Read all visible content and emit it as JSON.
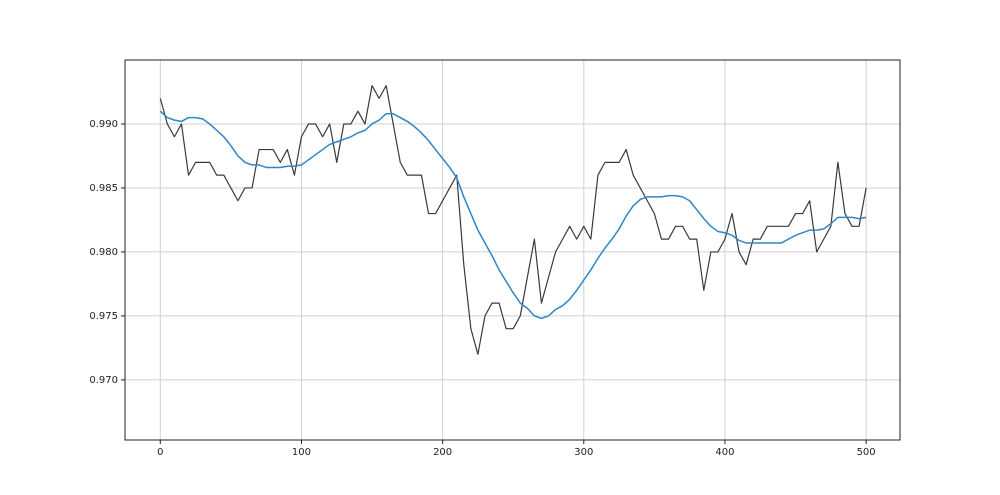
{
  "chart_data": {
    "type": "line",
    "x": [
      0,
      5,
      10,
      15,
      20,
      25,
      30,
      35,
      40,
      45,
      50,
      55,
      60,
      65,
      70,
      75,
      80,
      85,
      90,
      95,
      100,
      105,
      110,
      115,
      120,
      125,
      130,
      135,
      140,
      145,
      150,
      155,
      160,
      165,
      170,
      175,
      180,
      185,
      190,
      195,
      200,
      205,
      210,
      215,
      220,
      225,
      230,
      235,
      240,
      245,
      250,
      255,
      260,
      265,
      270,
      275,
      280,
      285,
      290,
      295,
      300,
      305,
      310,
      315,
      320,
      325,
      330,
      335,
      340,
      345,
      350,
      355,
      360,
      365,
      370,
      375,
      380,
      385,
      390,
      395,
      400,
      405,
      410,
      415,
      420,
      425,
      430,
      435,
      440,
      445,
      450,
      455,
      460,
      465,
      470,
      475,
      480,
      485,
      490,
      495,
      500
    ],
    "series": [
      {
        "color": "#3a3a3a",
        "values": [
          0.992,
          0.99,
          0.989,
          0.99,
          0.986,
          0.987,
          0.987,
          0.987,
          0.986,
          0.986,
          0.985,
          0.984,
          0.985,
          0.985,
          0.988,
          0.988,
          0.988,
          0.987,
          0.988,
          0.986,
          0.989,
          0.99,
          0.99,
          0.989,
          0.99,
          0.987,
          0.99,
          0.99,
          0.991,
          0.99,
          0.993,
          0.992,
          0.993,
          0.99,
          0.987,
          0.986,
          0.986,
          0.986,
          0.983,
          0.983,
          0.984,
          0.985,
          0.986,
          0.979,
          0.974,
          0.972,
          0.975,
          0.976,
          0.976,
          0.974,
          0.974,
          0.975,
          0.978,
          0.981,
          0.976,
          0.978,
          0.98,
          0.981,
          0.982,
          0.981,
          0.982,
          0.981,
          0.986,
          0.987,
          0.987,
          0.987,
          0.988,
          0.986,
          0.985,
          0.984,
          0.983,
          0.981,
          0.981,
          0.982,
          0.982,
          0.981,
          0.981,
          0.977,
          0.98,
          0.98,
          0.981,
          0.983,
          0.98,
          0.979,
          0.981,
          0.981,
          0.982,
          0.982,
          0.982,
          0.982,
          0.983,
          0.983,
          0.984,
          0.98,
          0.981,
          0.982,
          0.987,
          0.983,
          0.982,
          0.982,
          0.985
        ]
      },
      {
        "color": "#2e86c8",
        "values": [
          0.991,
          0.9905,
          0.9903,
          0.9902,
          0.9905,
          0.9905,
          0.9904,
          0.99,
          0.9895,
          0.989,
          0.9883,
          0.9875,
          0.987,
          0.9868,
          0.9868,
          0.9866,
          0.9866,
          0.9866,
          0.9867,
          0.9867,
          0.9868,
          0.9872,
          0.9876,
          0.988,
          0.9884,
          0.9886,
          0.9888,
          0.989,
          0.9893,
          0.9895,
          0.99,
          0.9903,
          0.9908,
          0.9908,
          0.9905,
          0.9902,
          0.9898,
          0.9893,
          0.9887,
          0.988,
          0.9873,
          0.9866,
          0.9858,
          0.9843,
          0.983,
          0.9817,
          0.9807,
          0.9797,
          0.9786,
          0.9777,
          0.9768,
          0.976,
          0.9756,
          0.975,
          0.9748,
          0.975,
          0.9755,
          0.9758,
          0.9763,
          0.977,
          0.9778,
          0.9786,
          0.9795,
          0.9803,
          0.981,
          0.9818,
          0.9828,
          0.9836,
          0.9841,
          0.9843,
          0.9843,
          0.9843,
          0.9844,
          0.9844,
          0.9843,
          0.984,
          0.9833,
          0.9826,
          0.982,
          0.9816,
          0.9815,
          0.9813,
          0.9809,
          0.9807,
          0.9807,
          0.9807,
          0.9807,
          0.9807,
          0.9807,
          0.981,
          0.9813,
          0.9815,
          0.9817,
          0.9817,
          0.9818,
          0.9822,
          0.9827,
          0.9827,
          0.9827,
          0.9826,
          0.9827
        ]
      }
    ],
    "xlim": [
      -25,
      524
    ],
    "xticks": [
      0,
      100,
      200,
      300,
      400,
      500
    ],
    "ylim": [
      0.9653,
      0.995
    ],
    "yticks": [
      {
        "value": 0.97,
        "label": "0.970"
      },
      {
        "value": 0.975,
        "label": "0.975"
      },
      {
        "value": 0.98,
        "label": "0.980"
      },
      {
        "value": 0.985,
        "label": "0.985"
      },
      {
        "value": 0.99,
        "label": "0.990"
      }
    ],
    "grid": true
  }
}
